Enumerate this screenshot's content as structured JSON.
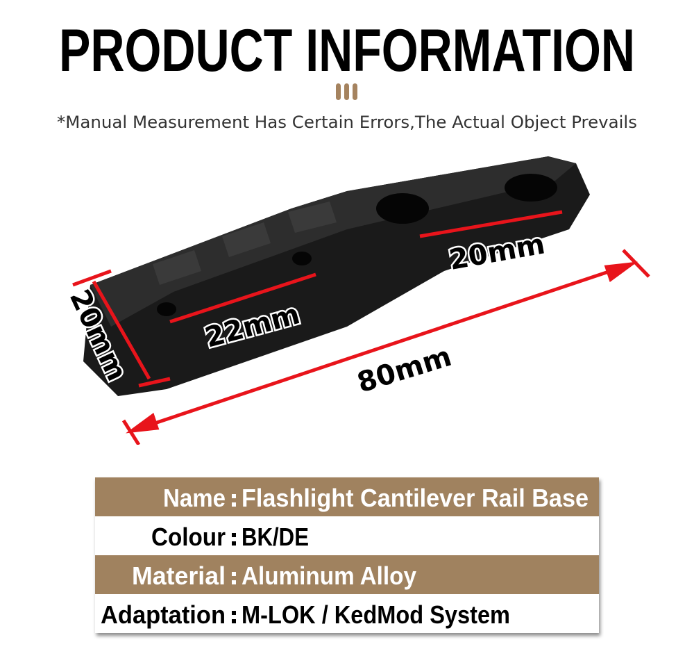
{
  "header": {
    "title": "PRODUCT INFORMATION",
    "subtitle": "*Manual Measurement Has Certain Errors,The Actual Object Prevails"
  },
  "dimensions": {
    "width_left": "20mm",
    "rail_spacing": "22mm",
    "hole_spacing": "20mm",
    "length": "80mm"
  },
  "specs": [
    {
      "label": "Name",
      "value": "Flashlight Cantilever Rail Base"
    },
    {
      "label": "Colour",
      "value": "BK/DE"
    },
    {
      "label": "Material",
      "value": "Aluminum Alloy"
    },
    {
      "label": "Adaptation",
      "value": "M-LOK / KedMod System"
    }
  ],
  "colors": {
    "accent": "#a0825f",
    "arrow": "#e8141b"
  }
}
